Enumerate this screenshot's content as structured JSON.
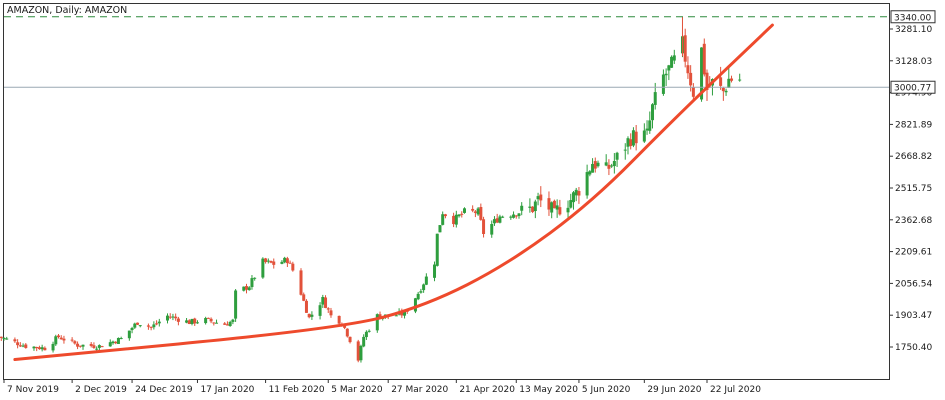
{
  "window_title": "AMAZON, Daily:  AMAZON",
  "colors": {
    "up": "#2e9e3e",
    "down": "#e2513a",
    "trend": "#ee4a2c",
    "resistance": "#2f8a3d",
    "price_line": "#9aa8b4",
    "frame": "#333333"
  },
  "chart_data": {
    "type": "candlestick",
    "title": "AMAZON, Daily:  AMAZON",
    "timeframe": "Daily",
    "symbol": "AMAZON",
    "y_axis_ticks": [
      3281.1,
      3128.03,
      2974.96,
      2821.89,
      2668.82,
      2515.75,
      2362.68,
      2209.61,
      2056.54,
      1903.47,
      1750.4
    ],
    "y_axis_labels": [
      "3281.10",
      "3128.03",
      "2974.96",
      "2821.89",
      "2668.82",
      "2515.75",
      "2362.68",
      "2209.61",
      "2056.54",
      "1903.47",
      "1750.40"
    ],
    "ylim": [
      1680,
      3380
    ],
    "x_axis_labels": [
      "7 Nov 2019",
      "2 Dec 2019",
      "24 Dec 2019",
      "17 Jan 2020",
      "11 Feb 2020",
      "5 Mar 2020",
      "27 Mar 2020",
      "21 Apr 2020",
      "13 May 2020",
      "5 Jun 2020",
      "29 Jun 2020",
      "22 Jul 2020"
    ],
    "resistance_level": {
      "value": 3340.0,
      "label": "3340.00"
    },
    "current_price": {
      "value": 3000.77,
      "label": "3000.77"
    },
    "trendline": [
      {
        "date": "2019-11-11",
        "value": 1690
      },
      {
        "date": "2020-03-10",
        "value": 1840
      },
      {
        "date": "2020-04-10",
        "value": 1950
      },
      {
        "date": "2020-05-10",
        "value": 2150
      },
      {
        "date": "2020-06-10",
        "value": 2450
      },
      {
        "date": "2020-07-10",
        "value": 2850
      },
      {
        "date": "2020-08-15",
        "value": 3300
      }
    ],
    "close_path": [
      [
        "2019-11-05",
        1800
      ],
      [
        "2019-11-15",
        1755
      ],
      [
        "2019-11-22",
        1745
      ],
      [
        "2019-11-27",
        1800
      ],
      [
        "2019-12-04",
        1760
      ],
      [
        "2019-12-12",
        1755
      ],
      [
        "2019-12-20",
        1790
      ],
      [
        "2019-12-26",
        1870
      ],
      [
        "2019-12-31",
        1845
      ],
      [
        "2020-01-06",
        1900
      ],
      [
        "2020-01-14",
        1870
      ],
      [
        "2020-01-20",
        1880
      ],
      [
        "2020-01-27",
        1860
      ],
      [
        "2020-01-30",
        1875
      ],
      [
        "2020-01-31",
        2010
      ],
      [
        "2020-02-05",
        2045
      ],
      [
        "2020-02-10",
        2160
      ],
      [
        "2020-02-14",
        2150
      ],
      [
        "2020-02-19",
        2170
      ],
      [
        "2020-02-21",
        2120
      ],
      [
        "2020-02-24",
        2010
      ],
      [
        "2020-02-27",
        1890
      ],
      [
        "2020-03-03",
        1980
      ],
      [
        "2020-03-06",
        1900
      ],
      [
        "2020-03-10",
        1870
      ],
      [
        "2020-03-13",
        1785
      ],
      [
        "2020-03-16",
        1690
      ],
      [
        "2020-03-18",
        1800
      ],
      [
        "2020-03-23",
        1900
      ],
      [
        "2020-03-27",
        1900
      ],
      [
        "2020-04-02",
        1910
      ],
      [
        "2020-04-07",
        2010
      ],
      [
        "2020-04-13",
        2160
      ],
      [
        "2020-04-14",
        2290
      ],
      [
        "2020-04-16",
        2400
      ],
      [
        "2020-04-20",
        2360
      ],
      [
        "2020-04-24",
        2400
      ],
      [
        "2020-04-29",
        2400
      ],
      [
        "2020-05-01",
        2300
      ],
      [
        "2020-05-07",
        2380
      ],
      [
        "2020-05-14",
        2400
      ],
      [
        "2020-05-19",
        2420
      ],
      [
        "2020-05-21",
        2460
      ],
      [
        "2020-05-27",
        2400
      ],
      [
        "2020-06-02",
        2460
      ],
      [
        "2020-06-05",
        2510
      ],
      [
        "2020-06-10",
        2640
      ],
      [
        "2020-06-15",
        2600
      ],
      [
        "2020-06-19",
        2660
      ],
      [
        "2020-06-24",
        2760
      ],
      [
        "2020-06-30",
        2770
      ],
      [
        "2020-07-02",
        2900
      ],
      [
        "2020-07-06",
        3050
      ],
      [
        "2020-07-09",
        3100
      ],
      [
        "2020-07-13",
        3200
      ],
      [
        "2020-07-15",
        3090
      ],
      [
        "2020-07-17",
        2980
      ],
      [
        "2020-07-20",
        3180
      ],
      [
        "2020-07-22",
        2990
      ],
      [
        "2020-07-24",
        3020
      ],
      [
        "2020-07-28",
        2980
      ],
      [
        "2020-07-30",
        3040
      ],
      [
        "2020-08-03",
        3040
      ]
    ],
    "grid": false,
    "legend": "none"
  }
}
